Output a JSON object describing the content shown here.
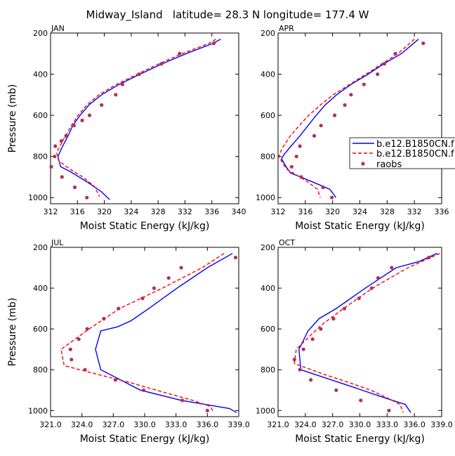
{
  "title": "Midway_Island   latitude= 28.3 N longitude= 177.4 W",
  "legend": {
    "entries": [
      "b.e12.B1850CN.f",
      "b.e12.B1850CN.f",
      "raobs"
    ]
  },
  "colors": {
    "model_a": "#0000ff",
    "model_b": "#ff0000",
    "raobs": "#b03060"
  },
  "chart_data": [
    {
      "type": "line",
      "panel": "JAN",
      "xlabel": "Moist Static Energy (kJ/kg)",
      "ylabel": "Pressure (mb)",
      "xlim": [
        312,
        340
      ],
      "xticks": [
        312,
        316,
        320,
        324,
        328,
        332,
        336,
        340
      ],
      "xtick_labels": [
        "312",
        "316",
        "320",
        "324",
        "328",
        "332",
        "336",
        "340"
      ],
      "ylim": [
        1030,
        200
      ],
      "yticks": [
        200,
        400,
        600,
        800,
        1000
      ],
      "ytick_labels": [
        "200",
        "400",
        "600",
        "800",
        "1000"
      ],
      "series": [
        {
          "name": "b.e12.B1850CN.f",
          "style": "solid",
          "color": "#0000ff",
          "points": [
            [
              337.3,
              230
            ],
            [
              336.2,
              250
            ],
            [
              332.2,
              300
            ],
            [
              328.6,
              350
            ],
            [
              325.3,
              400
            ],
            [
              322.2,
              450
            ],
            [
              319.6,
              500
            ],
            [
              317.7,
              550
            ],
            [
              316.4,
              600
            ],
            [
              315.3,
              650
            ],
            [
              314.6,
              700
            ],
            [
              313.8,
              750
            ],
            [
              313.1,
              800
            ],
            [
              313.5,
              850
            ],
            [
              315.0,
              875
            ],
            [
              317.5,
              925
            ],
            [
              319.5,
              970
            ],
            [
              320.8,
              1010
            ]
          ]
        },
        {
          "name": "b.e12.B1850CN.f",
          "style": "dashed",
          "color": "#ff0000",
          "points": [
            [
              336.6,
              230
            ],
            [
              335.6,
              250
            ],
            [
              331.6,
              300
            ],
            [
              328.1,
              350
            ],
            [
              324.9,
              400
            ],
            [
              321.8,
              450
            ],
            [
              319.2,
              500
            ],
            [
              317.4,
              550
            ],
            [
              316.1,
              600
            ],
            [
              315.1,
              650
            ],
            [
              314.2,
              700
            ],
            [
              313.4,
              750
            ],
            [
              312.9,
              780
            ],
            [
              313.2,
              820
            ],
            [
              314.8,
              860
            ],
            [
              316.8,
              900
            ],
            [
              318.5,
              945
            ],
            [
              319.3,
              995
            ]
          ]
        }
      ],
      "points": [
        [
          336.3,
          250
        ],
        [
          331.2,
          300
        ],
        [
          328.5,
          350
        ],
        [
          325.2,
          400
        ],
        [
          322.7,
          450
        ],
        [
          321.7,
          500
        ],
        [
          319.6,
          550
        ],
        [
          317.8,
          600
        ],
        [
          316.7,
          625
        ],
        [
          315.5,
          650
        ],
        [
          314.3,
          700
        ],
        [
          313.6,
          725
        ],
        [
          312.7,
          750
        ],
        [
          312.6,
          800
        ],
        [
          312.1,
          850
        ],
        [
          313.7,
          900
        ],
        [
          315.6,
          950
        ],
        [
          317.4,
          1000
        ]
      ]
    },
    {
      "type": "line",
      "panel": "APR",
      "xlabel": "Moist Static Energy (kJ/kg)",
      "ylabel": "",
      "xlim": [
        312,
        336
      ],
      "xticks": [
        312,
        316,
        320,
        324,
        328,
        332,
        336
      ],
      "xtick_labels": [
        "312",
        "316",
        "320",
        "324",
        "328",
        "332",
        "336"
      ],
      "ylim": [
        1030,
        200
      ],
      "yticks": [
        200,
        400,
        600,
        800,
        1000
      ],
      "ytick_labels": [
        "200",
        "400",
        "600",
        "800",
        "1000"
      ],
      "series": [
        {
          "name": "b.e12.B1850CN.f",
          "style": "solid",
          "color": "#0000ff",
          "points": [
            [
              332.6,
              230
            ],
            [
              330.1,
              300
            ],
            [
              327.5,
              350
            ],
            [
              325.2,
              400
            ],
            [
              322.7,
              450
            ],
            [
              320.6,
              500
            ],
            [
              318.9,
              550
            ],
            [
              317.6,
              600
            ],
            [
              316.4,
              650
            ],
            [
              315.2,
              700
            ],
            [
              313.9,
              750
            ],
            [
              312.9,
              790
            ],
            [
              312.5,
              810
            ],
            [
              313.0,
              840
            ],
            [
              313.8,
              880
            ],
            [
              316.8,
              920
            ],
            [
              319.6,
              960
            ],
            [
              320.5,
              1000
            ]
          ]
        },
        {
          "name": "b.e12.B1850CN.f",
          "style": "dashed",
          "color": "#ff0000",
          "points": [
            [
              332.0,
              230
            ],
            [
              329.6,
              300
            ],
            [
              327.2,
              350
            ],
            [
              324.9,
              400
            ],
            [
              322.5,
              450
            ],
            [
              320.1,
              500
            ],
            [
              318.2,
              550
            ],
            [
              316.5,
              600
            ],
            [
              315.1,
              650
            ],
            [
              313.8,
              700
            ],
            [
              312.6,
              760
            ],
            [
              312.1,
              800
            ],
            [
              313.2,
              860
            ],
            [
              316.2,
              920
            ],
            [
              317.8,
              960
            ],
            [
              318.2,
              1000
            ]
          ]
        }
      ],
      "points": [
        [
          333.3,
          250
        ],
        [
          329.2,
          300
        ],
        [
          327.6,
          350
        ],
        [
          326.6,
          400
        ],
        [
          324.6,
          450
        ],
        [
          322.7,
          500
        ],
        [
          321.8,
          550
        ],
        [
          320.3,
          600
        ],
        [
          318.3,
          650
        ],
        [
          317.3,
          700
        ],
        [
          315.2,
          750
        ],
        [
          314.7,
          800
        ],
        [
          314.0,
          850
        ],
        [
          315.4,
          900
        ],
        [
          318.6,
          950
        ],
        [
          319.9,
          1000
        ]
      ]
    },
    {
      "type": "line",
      "panel": "JUL",
      "xlabel": "Moist Static Energy (kJ/kg)",
      "ylabel": "Pressure (mb)",
      "xlim": [
        321.0,
        339.0
      ],
      "xticks": [
        321,
        324,
        327,
        330,
        333,
        336,
        339
      ],
      "xtick_labels": [
        "321.0",
        "324.0",
        "327.0",
        "330.0",
        "333.0",
        "336.0",
        "339.0"
      ],
      "ylim": [
        1030,
        200
      ],
      "yticks": [
        200,
        400,
        600,
        800,
        1000
      ],
      "ytick_labels": [
        "200",
        "400",
        "600",
        "800",
        "1000"
      ],
      "series": [
        {
          "name": "b.e12.B1850CN.f",
          "style": "solid",
          "color": "#0000ff",
          "points": [
            [
              338.4,
              230
            ],
            [
              336.0,
              300
            ],
            [
              333.1,
              400
            ],
            [
              330.4,
              500
            ],
            [
              328.7,
              560
            ],
            [
              327.4,
              590
            ],
            [
              325.8,
              610
            ],
            [
              325.3,
              700
            ],
            [
              325.8,
              800
            ],
            [
              329.6,
              900
            ],
            [
              333.5,
              950
            ],
            [
              338.1,
              990
            ],
            [
              338.8,
              1010
            ]
          ]
        },
        {
          "name": "b.e12.B1850CN.f",
          "style": "dashed",
          "color": "#ff0000",
          "points": [
            [
              337.6,
              230
            ],
            [
              335.5,
              300
            ],
            [
              331.7,
              400
            ],
            [
              327.6,
              500
            ],
            [
              324.7,
              600
            ],
            [
              322.0,
              700
            ],
            [
              322.3,
              780
            ],
            [
              325.3,
              820
            ],
            [
              328.4,
              860
            ],
            [
              331.8,
              910
            ],
            [
              334.6,
              950
            ],
            [
              336.3,
              980
            ],
            [
              336.6,
              1010
            ]
          ]
        }
      ],
      "points": [
        [
          338.7,
          250
        ],
        [
          333.5,
          300
        ],
        [
          332.3,
          350
        ],
        [
          330.9,
          400
        ],
        [
          329.8,
          450
        ],
        [
          327.5,
          500
        ],
        [
          326.1,
          550
        ],
        [
          324.5,
          600
        ],
        [
          323.7,
          650
        ],
        [
          322.9,
          700
        ],
        [
          323.0,
          750
        ],
        [
          324.3,
          800
        ],
        [
          327.2,
          850
        ],
        [
          329.9,
          900
        ],
        [
          333.6,
          950
        ],
        [
          336.0,
          1000
        ]
      ]
    },
    {
      "type": "line",
      "panel": "OCT",
      "xlabel": "Moist Static Energy (kJ/kg)",
      "ylabel": "",
      "xlim": [
        321.0,
        339.0
      ],
      "xticks": [
        321,
        324,
        327,
        330,
        333,
        336,
        339
      ],
      "xtick_labels": [
        "321.0",
        "324.0",
        "327.0",
        "330.0",
        "333.0",
        "336.0",
        "339.0"
      ],
      "ylim": [
        1030,
        200
      ],
      "yticks": [
        200,
        400,
        600,
        800,
        1000
      ],
      "ytick_labels": [
        "200",
        "400",
        "600",
        "800",
        "1000"
      ],
      "series": [
        {
          "name": "b.e12.B1850CN.f",
          "style": "solid",
          "color": "#0000ff",
          "points": [
            [
              338.5,
              230
            ],
            [
              336.5,
              270
            ],
            [
              334.0,
              300
            ],
            [
              330.6,
              400
            ],
            [
              327.4,
              500
            ],
            [
              325.5,
              550
            ],
            [
              324.3,
              610
            ],
            [
              323.3,
              700
            ],
            [
              323.5,
              800
            ],
            [
              326.2,
              840
            ],
            [
              328.9,
              880
            ],
            [
              332.9,
              940
            ],
            [
              335.0,
              970
            ],
            [
              335.6,
              1010
            ]
          ]
        },
        {
          "name": "b.e12.B1850CN.f",
          "style": "dashed",
          "color": "#ff0000",
          "points": [
            [
              338.8,
              230
            ],
            [
              335.3,
              300
            ],
            [
              331.4,
              400
            ],
            [
              328.2,
              500
            ],
            [
              325.8,
              580
            ],
            [
              324.6,
              630
            ],
            [
              323.0,
              700
            ],
            [
              322.8,
              770
            ],
            [
              325.9,
              820
            ],
            [
              328.6,
              860
            ],
            [
              331.2,
              900
            ],
            [
              333.1,
              940
            ],
            [
              334.4,
              970
            ],
            [
              334.8,
              1010
            ]
          ]
        }
      ],
      "points": [
        [
          337.6,
          250
        ],
        [
          333.5,
          300
        ],
        [
          332.0,
          350
        ],
        [
          331.3,
          400
        ],
        [
          329.9,
          450
        ],
        [
          328.3,
          500
        ],
        [
          327.1,
          550
        ],
        [
          325.7,
          600
        ],
        [
          324.8,
          650
        ],
        [
          323.8,
          700
        ],
        [
          322.8,
          750
        ],
        [
          323.4,
          800
        ],
        [
          324.6,
          850
        ],
        [
          327.4,
          900
        ],
        [
          330.1,
          950
        ],
        [
          333.2,
          1000
        ]
      ]
    }
  ]
}
